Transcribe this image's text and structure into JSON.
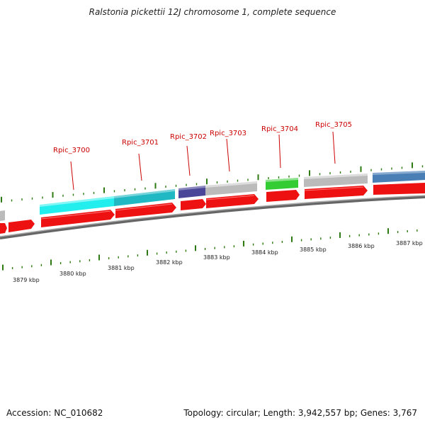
{
  "title": "Ralstonia pickettii 12J chromosome 1, complete sequence",
  "footer": {
    "accession": "Accession: NC_010682",
    "summary": "Topology: circular; Length: 3,942,557 bp; Genes: 3,767"
  },
  "colors": {
    "backbone": "#888888",
    "cds": "#ee1111",
    "ticks": "#2d7a12",
    "label_line": "#cc0000",
    "cyan": "#22eeee",
    "teal": "#1fb8c3",
    "indigo": "#4a4799",
    "grey": "#bbbbbb",
    "green": "#33cc33",
    "steelblue": "#4a7fb6"
  },
  "gene_labels": [
    {
      "text": "Rpic_3700"
    },
    {
      "text": "Rpic_3701"
    },
    {
      "text": "Rpic_3702"
    },
    {
      "text": "Rpic_3703"
    },
    {
      "text": "Rpic_3704"
    },
    {
      "text": "Rpic_3705"
    }
  ],
  "kbp_labels": [
    "3879 kbp",
    "3880 kbp",
    "3881 kbp",
    "3882 kbp",
    "3883 kbp",
    "3884 kbp",
    "3885 kbp",
    "3886 kbp",
    "3887 kbp"
  ]
}
